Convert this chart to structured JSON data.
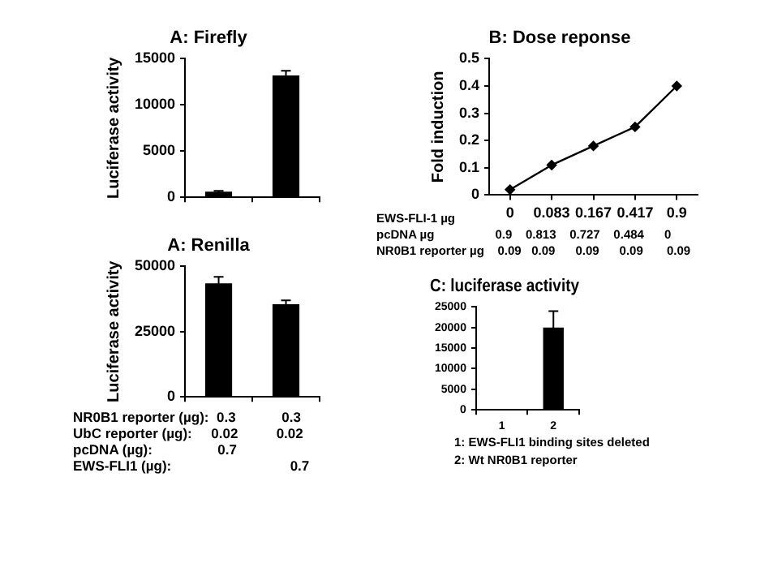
{
  "chart_data": [
    {
      "type": "bar",
      "title": "A: Firefly",
      "ylabel": "Luciferase activity",
      "categories": [
        null,
        null
      ],
      "values": [
        600,
        13200
      ],
      "errors": [
        100,
        500
      ],
      "color": "#000000",
      "ylim": [
        0,
        15000
      ],
      "yticks": [
        0,
        5000,
        10000,
        15000
      ],
      "grid": false,
      "legend": false,
      "tick_labels": "y"
    },
    {
      "type": "bar",
      "title": "A: Renilla",
      "ylabel": "Luciferase activity",
      "categories": [
        null,
        null
      ],
      "values": [
        43500,
        35500
      ],
      "errors": [
        2500,
        1500
      ],
      "color": "#000000",
      "ylim": [
        0,
        50000
      ],
      "yticks": [
        0,
        25000,
        50000
      ],
      "grid": false,
      "legend": false,
      "tick_labels": "y",
      "annotations": [
        "NR0B1 reporter (µg):  0.3            0.3",
        "UbC reporter (µg):     0.02          0.02",
        "pcDNA (µg):                 0.7",
        "EWS-FLI1 (µg):                               0.7"
      ]
    },
    {
      "type": "line",
      "title": "B: Dose reponse",
      "ylabel": "Fold induction",
      "categories": [
        "0",
        "0.083",
        "0.167",
        "0.417",
        "0.9"
      ],
      "values": [
        0.02,
        0.11,
        0.18,
        0.25,
        0.4
      ],
      "color": "#000000",
      "marker": "diamond",
      "line_style": "solid",
      "ylim": [
        0,
        0.5
      ],
      "yticks": [
        0,
        0.1,
        0.2,
        0.3,
        0.4,
        0.5
      ],
      "grid": false,
      "legend": false,
      "annotations": [
        "EWS-FLI-1 µg",
        "pcDNA µg                  0.9    0.813    0.727    0.484      0",
        "NR0B1 reporter µg    0.09   0.09      0.09      0.09       0.09"
      ]
    },
    {
      "type": "bar",
      "title": "C: luciferase activity",
      "categories": [
        "1",
        "2"
      ],
      "values": [
        200,
        20000
      ],
      "errors": [
        null,
        4000
      ],
      "color": "#000000",
      "ylim": [
        0,
        25000
      ],
      "yticks": [
        0,
        5000,
        10000,
        15000,
        20000,
        25000
      ],
      "grid": false,
      "legend": false,
      "annotations": [
        "1: EWS-FLI1 binding sites deleted",
        "2: Wt NR0B1 reporter"
      ]
    }
  ]
}
